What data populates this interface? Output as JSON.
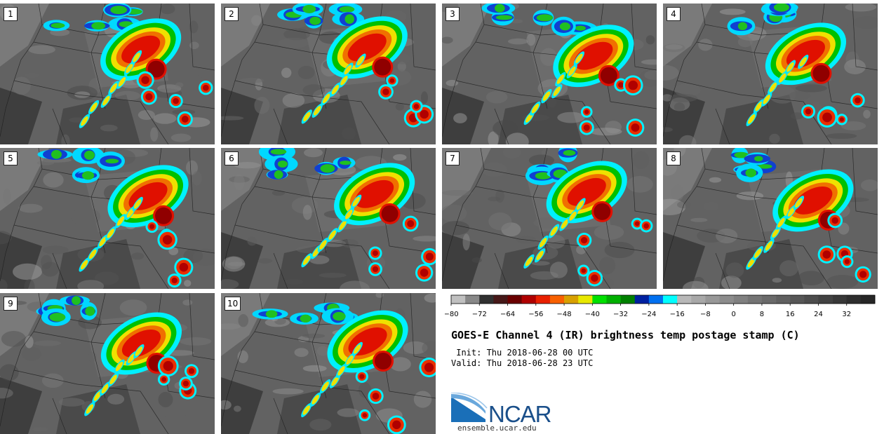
{
  "panels": [
    {
      "label": "1"
    },
    {
      "label": "2"
    },
    {
      "label": "3"
    },
    {
      "label": "4"
    },
    {
      "label": "5"
    },
    {
      "label": "6"
    },
    {
      "label": "7"
    },
    {
      "label": "8"
    },
    {
      "label": "9"
    },
    {
      "label": "10"
    }
  ],
  "colorbar": {
    "unit": "C",
    "tick_labels": [
      "−80",
      "−72",
      "−64",
      "−56",
      "−48",
      "−40",
      "−32",
      "−24",
      "−16",
      "−8",
      "0",
      "8",
      "16",
      "24",
      "32"
    ],
    "colors": [
      "#c0c0c0",
      "#888888",
      "#303030",
      "#461818",
      "#6a0000",
      "#b00000",
      "#e82000",
      "#f86000",
      "#d8a000",
      "#e8e800",
      "#00e000",
      "#00b000",
      "#008000",
      "#0020a0",
      "#0070f0",
      "#00ffff",
      "#b8b8b8",
      "#a8a8a8",
      "#989898",
      "#8c8c8c",
      "#808080",
      "#747474",
      "#6a6a6a",
      "#606060",
      "#565656",
      "#4c4c4c",
      "#424242",
      "#383838",
      "#2e2e2e",
      "#262626"
    ]
  },
  "title": "GOES-E Channel 4 (IR) brightness temp postage stamp (C)",
  "init_line": " Init: Thu 2018-06-28 00 UTC",
  "valid_line": "Valid: Thu 2018-06-28 23 UTC",
  "logo": {
    "text": "NCAR",
    "brand_color": "#1a6fb8"
  },
  "website": "ensemble.ucar.edu"
}
